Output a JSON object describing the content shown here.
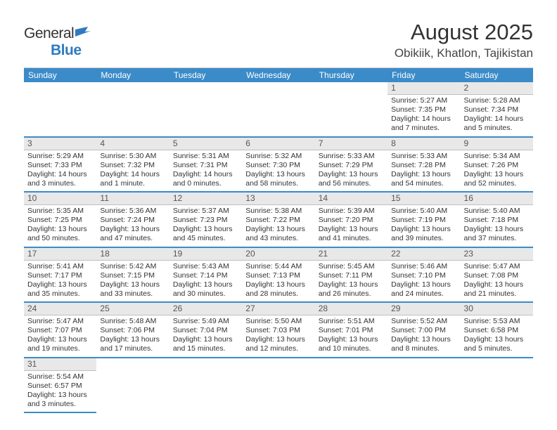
{
  "logo": {
    "general": "General",
    "blue": "Blue"
  },
  "title": "August 2025",
  "location": "Obikiik, Khatlon, Tajikistan",
  "colors": {
    "header_bg": "#3b8bc9",
    "header_text": "#ffffff",
    "row_border": "#3b8bc9",
    "daynum_bg": "#e8e8e8",
    "daynum_border": "#bfbfbf",
    "text": "#333333"
  },
  "dow": [
    "Sunday",
    "Monday",
    "Tuesday",
    "Wednesday",
    "Thursday",
    "Friday",
    "Saturday"
  ],
  "weeks": [
    [
      null,
      null,
      null,
      null,
      null,
      {
        "n": "1",
        "sunrise": "Sunrise: 5:27 AM",
        "sunset": "Sunset: 7:35 PM",
        "daylight": "Daylight: 14 hours and 7 minutes."
      },
      {
        "n": "2",
        "sunrise": "Sunrise: 5:28 AM",
        "sunset": "Sunset: 7:34 PM",
        "daylight": "Daylight: 14 hours and 5 minutes."
      }
    ],
    [
      {
        "n": "3",
        "sunrise": "Sunrise: 5:29 AM",
        "sunset": "Sunset: 7:33 PM",
        "daylight": "Daylight: 14 hours and 3 minutes."
      },
      {
        "n": "4",
        "sunrise": "Sunrise: 5:30 AM",
        "sunset": "Sunset: 7:32 PM",
        "daylight": "Daylight: 14 hours and 1 minute."
      },
      {
        "n": "5",
        "sunrise": "Sunrise: 5:31 AM",
        "sunset": "Sunset: 7:31 PM",
        "daylight": "Daylight: 14 hours and 0 minutes."
      },
      {
        "n": "6",
        "sunrise": "Sunrise: 5:32 AM",
        "sunset": "Sunset: 7:30 PM",
        "daylight": "Daylight: 13 hours and 58 minutes."
      },
      {
        "n": "7",
        "sunrise": "Sunrise: 5:33 AM",
        "sunset": "Sunset: 7:29 PM",
        "daylight": "Daylight: 13 hours and 56 minutes."
      },
      {
        "n": "8",
        "sunrise": "Sunrise: 5:33 AM",
        "sunset": "Sunset: 7:28 PM",
        "daylight": "Daylight: 13 hours and 54 minutes."
      },
      {
        "n": "9",
        "sunrise": "Sunrise: 5:34 AM",
        "sunset": "Sunset: 7:26 PM",
        "daylight": "Daylight: 13 hours and 52 minutes."
      }
    ],
    [
      {
        "n": "10",
        "sunrise": "Sunrise: 5:35 AM",
        "sunset": "Sunset: 7:25 PM",
        "daylight": "Daylight: 13 hours and 50 minutes."
      },
      {
        "n": "11",
        "sunrise": "Sunrise: 5:36 AM",
        "sunset": "Sunset: 7:24 PM",
        "daylight": "Daylight: 13 hours and 47 minutes."
      },
      {
        "n": "12",
        "sunrise": "Sunrise: 5:37 AM",
        "sunset": "Sunset: 7:23 PM",
        "daylight": "Daylight: 13 hours and 45 minutes."
      },
      {
        "n": "13",
        "sunrise": "Sunrise: 5:38 AM",
        "sunset": "Sunset: 7:22 PM",
        "daylight": "Daylight: 13 hours and 43 minutes."
      },
      {
        "n": "14",
        "sunrise": "Sunrise: 5:39 AM",
        "sunset": "Sunset: 7:20 PM",
        "daylight": "Daylight: 13 hours and 41 minutes."
      },
      {
        "n": "15",
        "sunrise": "Sunrise: 5:40 AM",
        "sunset": "Sunset: 7:19 PM",
        "daylight": "Daylight: 13 hours and 39 minutes."
      },
      {
        "n": "16",
        "sunrise": "Sunrise: 5:40 AM",
        "sunset": "Sunset: 7:18 PM",
        "daylight": "Daylight: 13 hours and 37 minutes."
      }
    ],
    [
      {
        "n": "17",
        "sunrise": "Sunrise: 5:41 AM",
        "sunset": "Sunset: 7:17 PM",
        "daylight": "Daylight: 13 hours and 35 minutes."
      },
      {
        "n": "18",
        "sunrise": "Sunrise: 5:42 AM",
        "sunset": "Sunset: 7:15 PM",
        "daylight": "Daylight: 13 hours and 33 minutes."
      },
      {
        "n": "19",
        "sunrise": "Sunrise: 5:43 AM",
        "sunset": "Sunset: 7:14 PM",
        "daylight": "Daylight: 13 hours and 30 minutes."
      },
      {
        "n": "20",
        "sunrise": "Sunrise: 5:44 AM",
        "sunset": "Sunset: 7:13 PM",
        "daylight": "Daylight: 13 hours and 28 minutes."
      },
      {
        "n": "21",
        "sunrise": "Sunrise: 5:45 AM",
        "sunset": "Sunset: 7:11 PM",
        "daylight": "Daylight: 13 hours and 26 minutes."
      },
      {
        "n": "22",
        "sunrise": "Sunrise: 5:46 AM",
        "sunset": "Sunset: 7:10 PM",
        "daylight": "Daylight: 13 hours and 24 minutes."
      },
      {
        "n": "23",
        "sunrise": "Sunrise: 5:47 AM",
        "sunset": "Sunset: 7:08 PM",
        "daylight": "Daylight: 13 hours and 21 minutes."
      }
    ],
    [
      {
        "n": "24",
        "sunrise": "Sunrise: 5:47 AM",
        "sunset": "Sunset: 7:07 PM",
        "daylight": "Daylight: 13 hours and 19 minutes."
      },
      {
        "n": "25",
        "sunrise": "Sunrise: 5:48 AM",
        "sunset": "Sunset: 7:06 PM",
        "daylight": "Daylight: 13 hours and 17 minutes."
      },
      {
        "n": "26",
        "sunrise": "Sunrise: 5:49 AM",
        "sunset": "Sunset: 7:04 PM",
        "daylight": "Daylight: 13 hours and 15 minutes."
      },
      {
        "n": "27",
        "sunrise": "Sunrise: 5:50 AM",
        "sunset": "Sunset: 7:03 PM",
        "daylight": "Daylight: 13 hours and 12 minutes."
      },
      {
        "n": "28",
        "sunrise": "Sunrise: 5:51 AM",
        "sunset": "Sunset: 7:01 PM",
        "daylight": "Daylight: 13 hours and 10 minutes."
      },
      {
        "n": "29",
        "sunrise": "Sunrise: 5:52 AM",
        "sunset": "Sunset: 7:00 PM",
        "daylight": "Daylight: 13 hours and 8 minutes."
      },
      {
        "n": "30",
        "sunrise": "Sunrise: 5:53 AM",
        "sunset": "Sunset: 6:58 PM",
        "daylight": "Daylight: 13 hours and 5 minutes."
      }
    ],
    [
      {
        "n": "31",
        "sunrise": "Sunrise: 5:54 AM",
        "sunset": "Sunset: 6:57 PM",
        "daylight": "Daylight: 13 hours and 3 minutes."
      },
      null,
      null,
      null,
      null,
      null,
      null
    ]
  ]
}
